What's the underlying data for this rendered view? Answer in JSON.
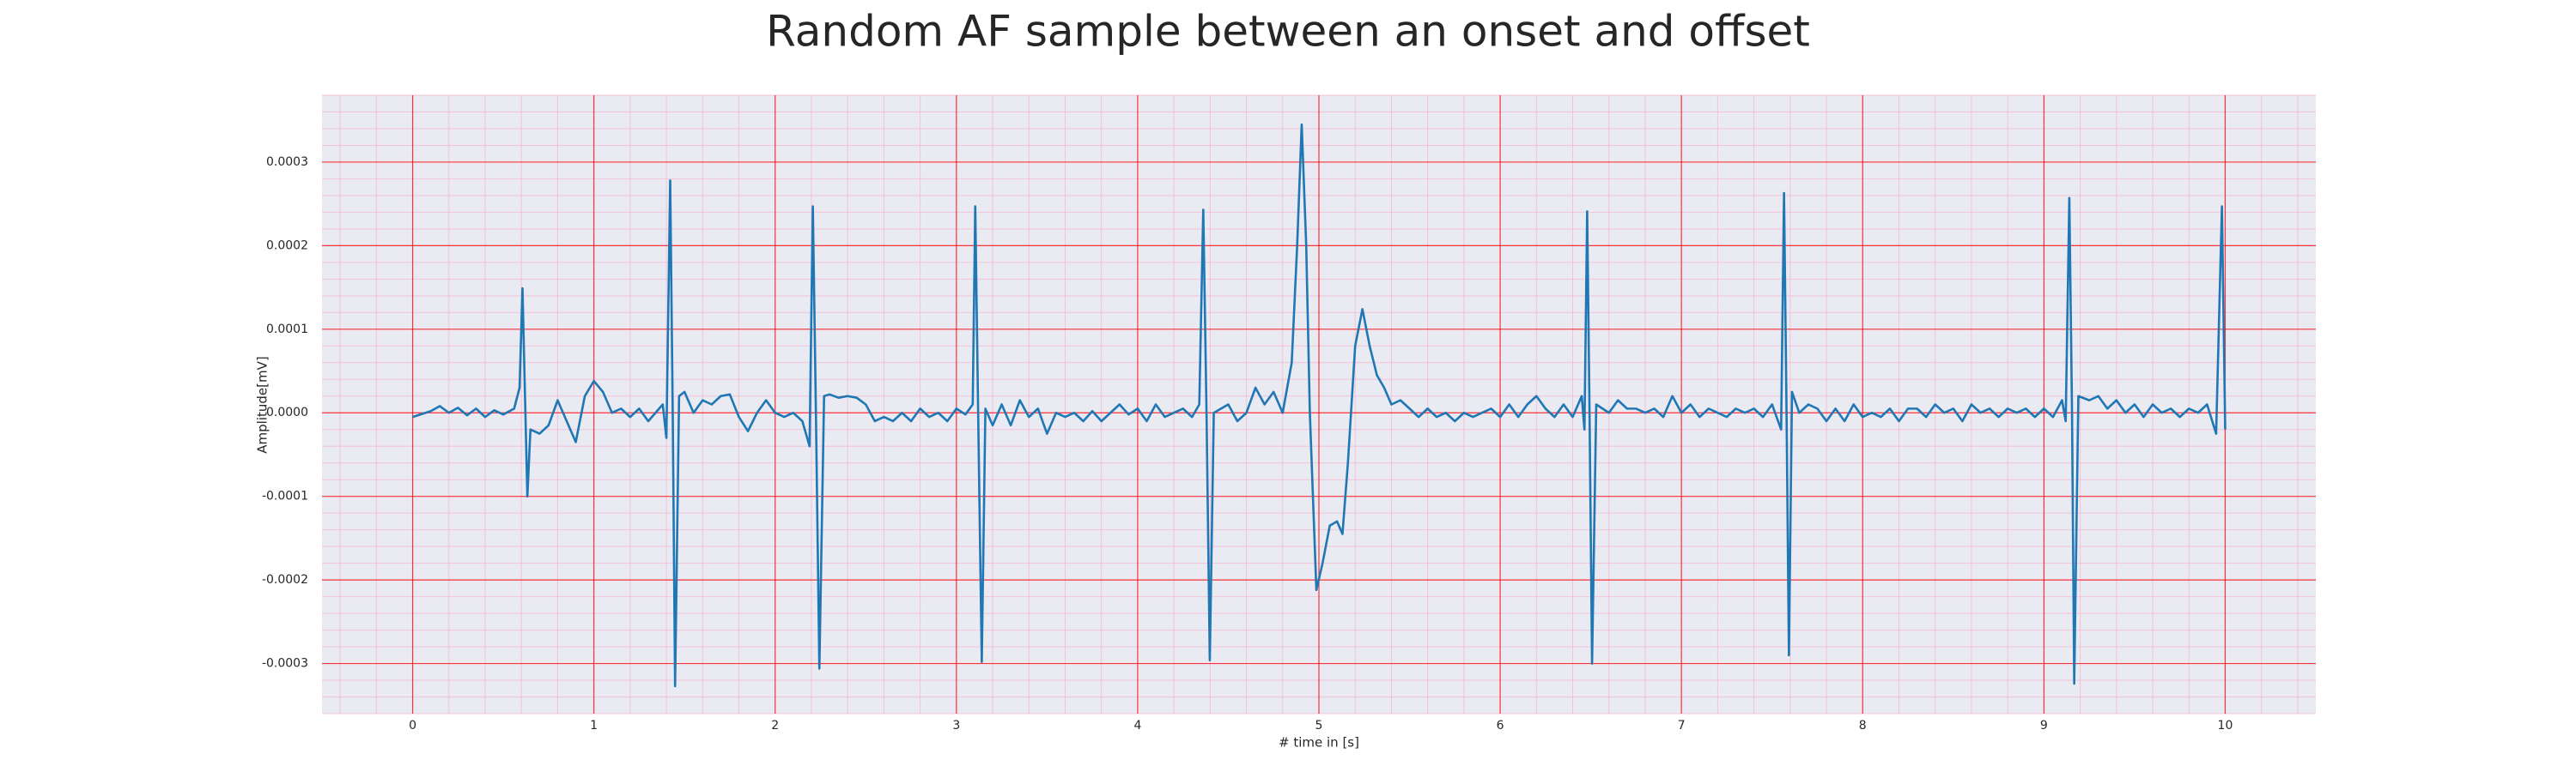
{
  "chart_data": {
    "type": "line",
    "title": "Random AF sample between an onset and offset",
    "xlabel": "# time in [s]",
    "ylabel": "Amplitude[mV]",
    "xlim": [
      -0.5,
      10.5
    ],
    "ylim": [
      -0.00036,
      0.00038
    ],
    "xticks": [
      0,
      1,
      2,
      3,
      4,
      5,
      6,
      7,
      8,
      9,
      10
    ],
    "yticks": [
      -0.0003,
      -0.0002,
      -0.0001,
      {
        "value": 0,
        "label": "0.0000"
      },
      0.0001,
      0.0002,
      0.0003
    ],
    "yticks_labels_note_free": null,
    "grid": true,
    "minor_grid": true,
    "grid_color": "#ff0000",
    "minor_grid_color": "#f7a8c8",
    "background": "#eaeaf2",
    "series": [
      {
        "name": null,
        "color": "#1f77b4",
        "x": [
          0.0,
          0.1,
          0.15,
          0.2,
          0.25,
          0.3,
          0.35,
          0.4,
          0.45,
          0.5,
          0.56,
          0.59,
          0.606,
          0.62,
          0.633,
          0.65,
          0.7,
          0.75,
          0.8,
          0.85,
          0.9,
          0.95,
          1.0,
          1.05,
          1.1,
          1.15,
          1.2,
          1.25,
          1.3,
          1.38,
          1.4,
          1.421,
          1.435,
          1.448,
          1.47,
          1.5,
          1.55,
          1.6,
          1.65,
          1.7,
          1.75,
          1.8,
          1.85,
          1.9,
          1.95,
          2.0,
          2.05,
          2.1,
          2.15,
          2.19,
          2.208,
          2.225,
          2.244,
          2.27,
          2.3,
          2.35,
          2.4,
          2.45,
          2.5,
          2.55,
          2.6,
          2.65,
          2.7,
          2.75,
          2.8,
          2.85,
          2.9,
          2.95,
          3.0,
          3.05,
          3.09,
          3.104,
          3.12,
          3.14,
          3.16,
          3.2,
          3.25,
          3.3,
          3.35,
          3.4,
          3.45,
          3.5,
          3.55,
          3.6,
          3.65,
          3.7,
          3.75,
          3.8,
          3.85,
          3.9,
          3.95,
          4.0,
          4.05,
          4.1,
          4.15,
          4.2,
          4.25,
          4.3,
          4.34,
          4.362,
          4.38,
          4.398,
          4.42,
          4.5,
          4.55,
          4.6,
          4.65,
          4.7,
          4.75,
          4.8,
          4.85,
          4.88,
          4.905,
          4.93,
          4.95,
          4.986,
          5.02,
          5.06,
          5.1,
          5.13,
          5.16,
          5.2,
          5.24,
          5.28,
          5.32,
          5.36,
          5.4,
          5.45,
          5.5,
          5.55,
          5.6,
          5.65,
          5.7,
          5.75,
          5.8,
          5.85,
          5.9,
          5.95,
          6.0,
          6.05,
          6.1,
          6.15,
          6.2,
          6.25,
          6.3,
          6.35,
          6.4,
          6.45,
          6.465,
          6.48,
          6.493,
          6.507,
          6.53,
          6.6,
          6.65,
          6.7,
          6.75,
          6.8,
          6.85,
          6.9,
          6.95,
          7.0,
          7.05,
          7.1,
          7.15,
          7.2,
          7.25,
          7.3,
          7.35,
          7.4,
          7.45,
          7.5,
          7.55,
          7.566,
          7.58,
          7.593,
          7.61,
          7.65,
          7.7,
          7.75,
          7.8,
          7.85,
          7.9,
          7.95,
          8.0,
          8.05,
          8.1,
          8.15,
          8.2,
          8.25,
          8.3,
          8.35,
          8.4,
          8.45,
          8.5,
          8.55,
          8.6,
          8.65,
          8.7,
          8.75,
          8.8,
          8.85,
          8.9,
          8.95,
          9.0,
          9.05,
          9.1,
          9.12,
          9.14,
          9.155,
          9.167,
          9.19,
          9.25,
          9.3,
          9.35,
          9.4,
          9.45,
          9.5,
          9.55,
          9.6,
          9.65,
          9.7,
          9.75,
          9.8,
          9.85,
          9.9,
          9.95,
          9.982,
          10.0
        ],
        "values": [
          -5e-06,
          2e-06,
          8e-06,
          0.0,
          6e-06,
          -3e-06,
          5e-06,
          -5e-06,
          3e-06,
          -2e-06,
          5e-06,
          3e-05,
          0.000149,
          2e-05,
          -0.0001,
          -2e-05,
          -2.5e-05,
          -1.5e-05,
          1.5e-05,
          -1e-05,
          -3.5e-05,
          2e-05,
          3.8e-05,
          2.5e-05,
          0.0,
          5e-06,
          -5e-06,
          5e-06,
          -1e-05,
          1e-05,
          -3e-05,
          0.000278,
          0.0,
          -0.000327,
          2e-05,
          2.5e-05,
          0.0,
          1.5e-05,
          1e-05,
          2e-05,
          2.2e-05,
          -5e-06,
          -2.2e-05,
          0.0,
          1.5e-05,
          0.0,
          -5e-06,
          0.0,
          -1e-05,
          -4e-05,
          0.000247,
          0.0,
          -0.000306,
          2e-05,
          2.2e-05,
          1.8e-05,
          2e-05,
          1.8e-05,
          1e-05,
          -1e-05,
          -5e-06,
          -1e-05,
          0.0,
          -1e-05,
          5e-06,
          -5e-06,
          0.0,
          -1e-05,
          5e-06,
          -2e-06,
          1e-05,
          0.000247,
          0.0,
          -0.000298,
          5e-06,
          -1.5e-05,
          1e-05,
          -1.5e-05,
          1.5e-05,
          -5e-06,
          5e-06,
          -2.5e-05,
          0.0,
          -5e-06,
          0.0,
          -1e-05,
          2e-06,
          -1e-05,
          0.0,
          1e-05,
          -2e-06,
          5e-06,
          -1e-05,
          1e-05,
          -5e-06,
          0.0,
          5e-06,
          -5e-06,
          1e-05,
          0.000243,
          0.0,
          -0.000296,
          0.0,
          1e-05,
          -1e-05,
          0.0,
          3e-05,
          1e-05,
          2.5e-05,
          0.0,
          6e-05,
          0.0002,
          0.000345,
          0.0002,
          0.0,
          -0.000212,
          -0.00018,
          -0.000135,
          -0.00013,
          -0.000145,
          -6e-05,
          8e-05,
          0.000124,
          8e-05,
          4.5e-05,
          3e-05,
          1e-05,
          1.5e-05,
          5e-06,
          -5e-06,
          5e-06,
          -5e-06,
          0.0,
          -1e-05,
          0.0,
          -5e-06,
          0.0,
          5e-06,
          -5e-06,
          1e-05,
          -5e-06,
          1e-05,
          2e-05,
          5e-06,
          -5e-06,
          1e-05,
          -5e-06,
          2e-05,
          -2e-05,
          0.000241,
          0.0,
          -0.0003,
          1e-05,
          0.0,
          1.5e-05,
          5e-06,
          5e-06,
          0.0,
          5e-06,
          -5e-06,
          2e-05,
          0.0,
          1e-05,
          -5e-06,
          5e-06,
          0.0,
          -5e-06,
          5e-06,
          0.0,
          5e-06,
          -5e-06,
          1e-05,
          -2e-05,
          0.000263,
          0.0,
          -0.00029,
          2.5e-05,
          0.0,
          1e-05,
          5e-06,
          -1e-05,
          5e-06,
          -1e-05,
          1e-05,
          -5e-06,
          0.0,
          -5e-06,
          5e-06,
          -1e-05,
          5e-06,
          5e-06,
          -5e-06,
          1e-05,
          0.0,
          5e-06,
          -1e-05,
          1e-05,
          0.0,
          5e-06,
          -5e-06,
          5e-06,
          0.0,
          5e-06,
          -5e-06,
          5e-06,
          -5e-06,
          1.5e-05,
          -1e-05,
          0.000257,
          0.0,
          -0.000324,
          2e-05,
          1.5e-05,
          2e-05,
          5e-06,
          1.5e-05,
          0.0,
          1e-05,
          -5e-06,
          1e-05,
          0.0,
          5e-06,
          -5e-06,
          5e-06,
          0.0,
          1e-05,
          -2.5e-05,
          0.000247,
          -2e-05
        ]
      }
    ]
  }
}
